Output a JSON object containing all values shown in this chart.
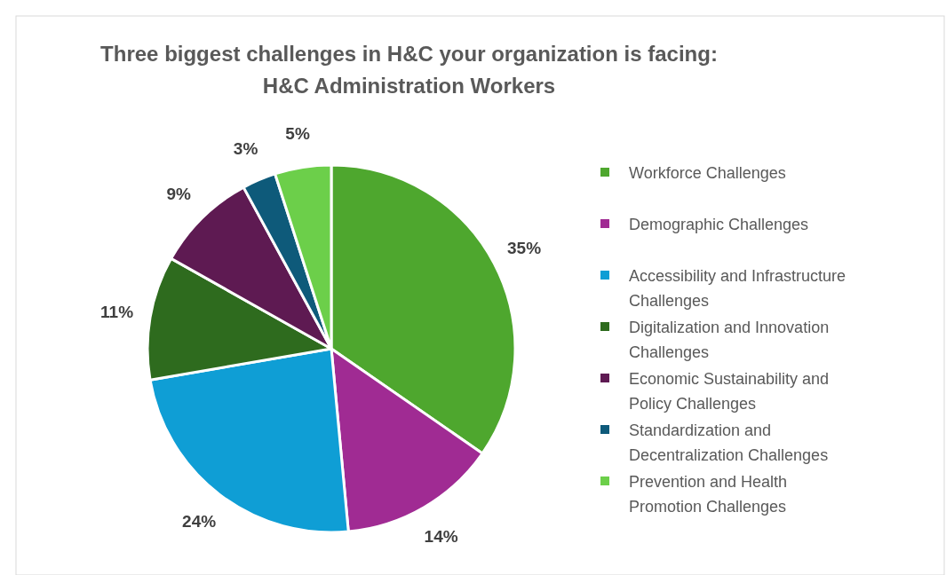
{
  "chart_data": {
    "type": "pie",
    "title": "Three biggest challenges in H&C your organization is facing: H&C Administration Workers",
    "categories": [
      "Workforce Challenges",
      "Demographic Challenges",
      "Accessibility and Infrastructure Challenges",
      "Digitalization and Innovation Challenges",
      "Economic Sustainability and Policy Challenges",
      "Standardization and Decentralization Challenges",
      "Prevention and Health Promotion Challenges"
    ],
    "values": [
      35,
      14,
      24,
      11,
      9,
      3,
      5
    ],
    "value_labels": [
      "35%",
      "14%",
      "24%",
      "11%",
      "9%",
      "3%",
      "5%"
    ],
    "colors": [
      "#4ea72e",
      "#a02b93",
      "#0f9ed5",
      "#2e6b1e",
      "#5e1a52",
      "#0e5a7a",
      "#6ccf4a"
    ],
    "legend": "right"
  }
}
